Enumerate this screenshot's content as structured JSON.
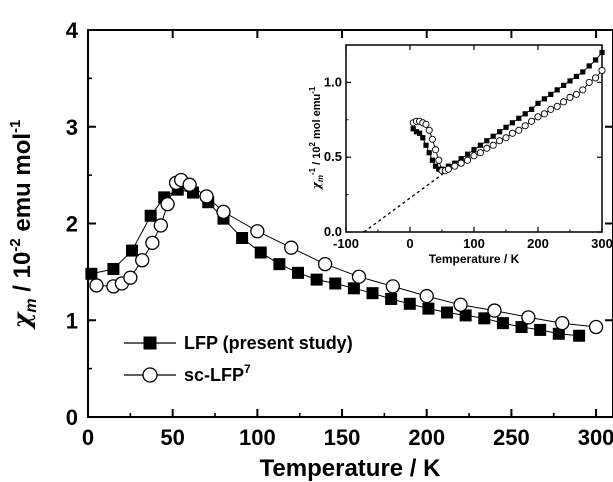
{
  "chart_data": [
    {
      "type": "line",
      "title": "",
      "xlabel": "Temperature / K",
      "ylabel_symbol": "χ",
      "ylabel_subscript": "m",
      "ylabel_rest": " / 10",
      "ylabel_exp1": "-2",
      "ylabel_mid": " emu mol",
      "ylabel_exp2": "-1",
      "xlim": [
        0,
        310
      ],
      "ylim": [
        0,
        4
      ],
      "xticks": [
        "0",
        "50",
        "100",
        "150",
        "200",
        "250",
        "300"
      ],
      "yticks": [
        "0",
        "1",
        "2",
        "3",
        "4"
      ],
      "grid": false,
      "legend_position": "lower-left",
      "series": [
        {
          "name": "LFP (present study)",
          "marker": "filled-square",
          "x": [
            2,
            15,
            26,
            37,
            45,
            53,
            62,
            71,
            80,
            91,
            102,
            113,
            124,
            135,
            146,
            157,
            168,
            179,
            190,
            201,
            212,
            223,
            234,
            245,
            256,
            267,
            278,
            290
          ],
          "y": [
            1.48,
            1.53,
            1.72,
            2.08,
            2.27,
            2.35,
            2.32,
            2.22,
            2.05,
            1.85,
            1.7,
            1.58,
            1.49,
            1.42,
            1.38,
            1.33,
            1.28,
            1.22,
            1.17,
            1.12,
            1.08,
            1.05,
            1.02,
            0.97,
            0.93,
            0.9,
            0.86,
            0.84
          ]
        },
        {
          "name": "sc-LFP",
          "name_superscript": "7",
          "marker": "open-circle",
          "x": [
            5,
            15,
            20,
            25,
            32,
            38,
            43,
            47,
            52,
            55,
            60,
            70,
            80,
            100,
            120,
            140,
            160,
            180,
            200,
            220,
            240,
            260,
            280,
            300
          ],
          "y": [
            1.36,
            1.35,
            1.38,
            1.44,
            1.62,
            1.8,
            1.98,
            2.2,
            2.42,
            2.45,
            2.4,
            2.28,
            2.12,
            1.92,
            1.75,
            1.58,
            1.45,
            1.35,
            1.25,
            1.16,
            1.1,
            1.03,
            0.97,
            0.93
          ]
        }
      ]
    },
    {
      "type": "line",
      "title": "",
      "xlabel": "Temperature / K",
      "ylabel_symbol": "χ",
      "ylabel_subscript": "m",
      "ylabel_exp0": "-1",
      "ylabel_rest": " / 10",
      "ylabel_exp1": "2",
      "ylabel_mid": " mol emu",
      "ylabel_exp2": "-1",
      "xlim": [
        -100,
        300
      ],
      "ylim": [
        0,
        1.25
      ],
      "xticks": [
        "-100",
        "0",
        "100",
        "200",
        "300"
      ],
      "yticks": [
        "0.0",
        "0.5",
        "1.0"
      ],
      "grid": false,
      "series": [
        {
          "marker": "filled-square",
          "x": [
            5,
            10,
            15,
            20,
            25,
            30,
            35,
            40,
            45,
            50,
            60,
            70,
            80,
            90,
            100,
            110,
            120,
            130,
            140,
            150,
            160,
            170,
            180,
            190,
            200,
            210,
            220,
            230,
            240,
            250,
            260,
            270,
            280,
            290,
            300
          ],
          "y": [
            0.69,
            0.67,
            0.66,
            0.63,
            0.58,
            0.53,
            0.48,
            0.44,
            0.42,
            0.42,
            0.44,
            0.46,
            0.49,
            0.52,
            0.55,
            0.58,
            0.61,
            0.64,
            0.67,
            0.7,
            0.73,
            0.76,
            0.79,
            0.82,
            0.86,
            0.89,
            0.92,
            0.95,
            0.98,
            1.01,
            1.04,
            1.07,
            1.11,
            1.15,
            1.2
          ]
        },
        {
          "marker": "open-circle",
          "x": [
            5,
            10,
            15,
            20,
            25,
            30,
            35,
            40,
            45,
            50,
            55,
            60,
            70,
            80,
            90,
            100,
            110,
            120,
            130,
            140,
            150,
            160,
            170,
            180,
            190,
            200,
            210,
            220,
            230,
            240,
            250,
            260,
            270,
            280,
            290,
            300
          ],
          "y": [
            0.73,
            0.74,
            0.74,
            0.73,
            0.72,
            0.68,
            0.62,
            0.55,
            0.48,
            0.41,
            0.41,
            0.42,
            0.44,
            0.46,
            0.48,
            0.51,
            0.53,
            0.56,
            0.58,
            0.61,
            0.63,
            0.66,
            0.68,
            0.71,
            0.74,
            0.77,
            0.79,
            0.82,
            0.84,
            0.87,
            0.9,
            0.92,
            0.95,
            1.0,
            1.03,
            1.08
          ]
        },
        {
          "style": "dashed-fit",
          "x": [
            -72,
            55
          ],
          "y": [
            0.0,
            0.4
          ]
        }
      ]
    }
  ]
}
